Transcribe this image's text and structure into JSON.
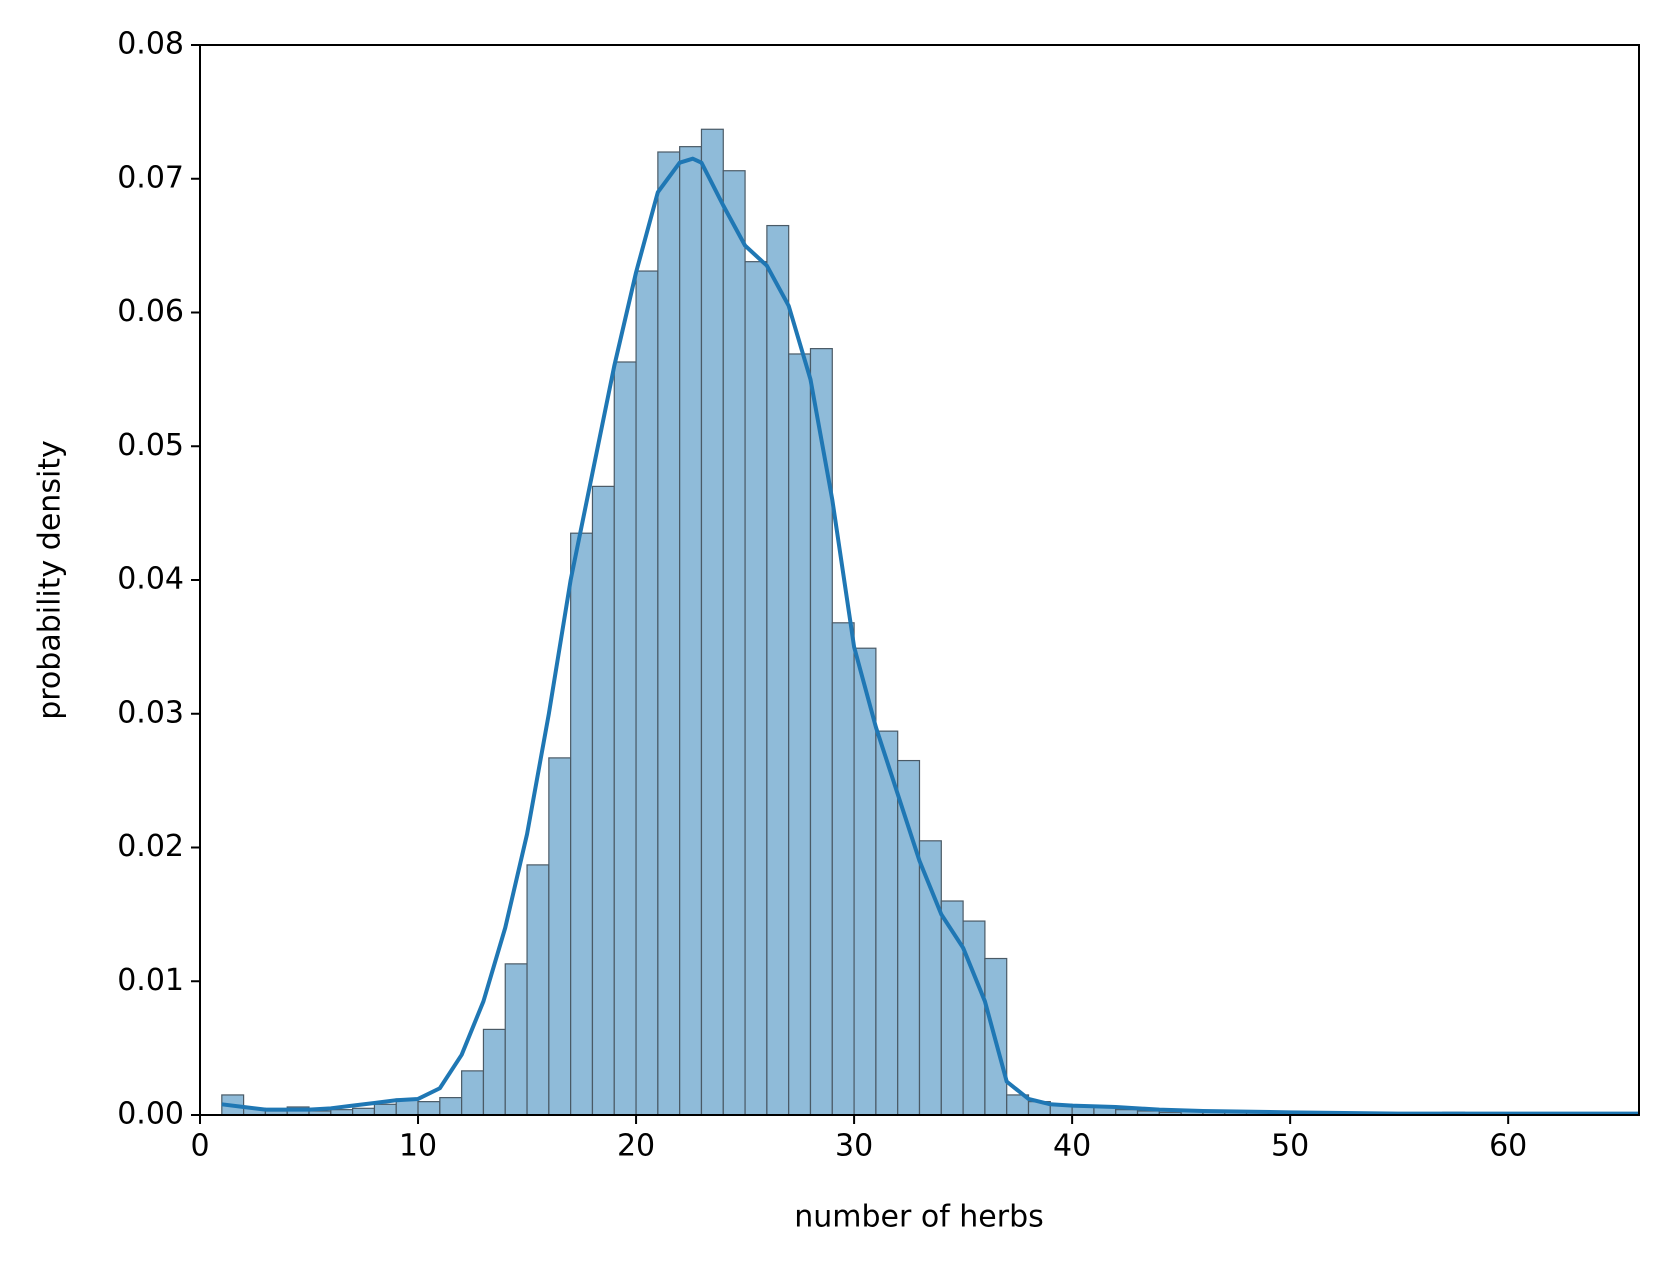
{
  "chart_data": {
    "type": "histogram",
    "x_label": "number of herbs",
    "y_label": "probability density",
    "bins": [
      1,
      2,
      3,
      4,
      5,
      6,
      7,
      8,
      9,
      10,
      11,
      12,
      13,
      14,
      15,
      16,
      17,
      18,
      19,
      20,
      21,
      22,
      23,
      24,
      25,
      26,
      27,
      28,
      29,
      30,
      31,
      32,
      33,
      34,
      35,
      36,
      37,
      38,
      39,
      40,
      41,
      42,
      43,
      44,
      45,
      46,
      47,
      48,
      49,
      50,
      51,
      52,
      53,
      54,
      55,
      56,
      57,
      58,
      59,
      60,
      61,
      62,
      63,
      64,
      65,
      66
    ],
    "values": [
      0.0015,
      0.0005,
      0.0003,
      0.0006,
      0.0003,
      0.0004,
      0.0005,
      0.0008,
      0.0012,
      0.001,
      0.0013,
      0.0033,
      0.0064,
      0.0113,
      0.0187,
      0.0267,
      0.0435,
      0.047,
      0.0563,
      0.0631,
      0.072,
      0.0724,
      0.0737,
      0.0706,
      0.0638,
      0.0665,
      0.0569,
      0.0573,
      0.0368,
      0.0349,
      0.0287,
      0.0265,
      0.0205,
      0.016,
      0.0145,
      0.0117,
      0.0015,
      0.001,
      0.0008,
      0.0006,
      0.0006,
      0.0004,
      0.0003,
      0.0002,
      0.0003,
      0.0002,
      0.0002,
      0.0002,
      0.0002,
      0.0001,
      0.0001,
      0.0001,
      0.0001,
      0.0001,
      0.0001,
      0.0001,
      0.0002,
      0.0001,
      0.0001,
      0.0001,
      0.0001,
      0.0001,
      0.0001,
      0.0001,
      0.0001
    ],
    "color": "#8fbbd9",
    "edgecolor": "#4a5a66",
    "kde": {
      "color": "#1f77b4",
      "x": [
        1,
        2,
        3,
        4,
        5,
        6,
        7,
        8,
        9,
        10,
        11,
        12,
        13,
        14,
        15,
        16,
        17,
        18,
        19,
        20,
        21,
        22,
        22.6,
        23,
        24,
        25,
        26,
        27,
        28,
        29,
        30,
        31,
        32,
        33,
        34,
        35,
        36,
        37,
        38,
        39,
        40,
        42,
        44,
        46,
        50,
        55,
        60,
        66
      ],
      "y": [
        0.0008,
        0.0006,
        0.0004,
        0.0004,
        0.0004,
        0.0005,
        0.0007,
        0.0009,
        0.0011,
        0.0012,
        0.002,
        0.0045,
        0.0085,
        0.014,
        0.021,
        0.03,
        0.04,
        0.048,
        0.056,
        0.063,
        0.069,
        0.0712,
        0.0715,
        0.0712,
        0.068,
        0.065,
        0.0635,
        0.0605,
        0.055,
        0.046,
        0.035,
        0.029,
        0.024,
        0.019,
        0.015,
        0.0125,
        0.0085,
        0.0025,
        0.0012,
        0.0008,
        0.0007,
        0.0006,
        0.0004,
        0.0003,
        0.0002,
        0.0001,
        0.0001,
        0.0001
      ]
    },
    "xlim": [
      0,
      66
    ],
    "ylim": [
      0,
      0.08
    ],
    "xticks": [
      0,
      10,
      20,
      30,
      40,
      50,
      60
    ],
    "yticks": [
      {
        "value": 0,
        "label": "0.00"
      },
      0.01,
      0.02,
      0.03,
      0.04,
      0.05,
      0.06,
      0.07,
      0.08
    ]
  }
}
